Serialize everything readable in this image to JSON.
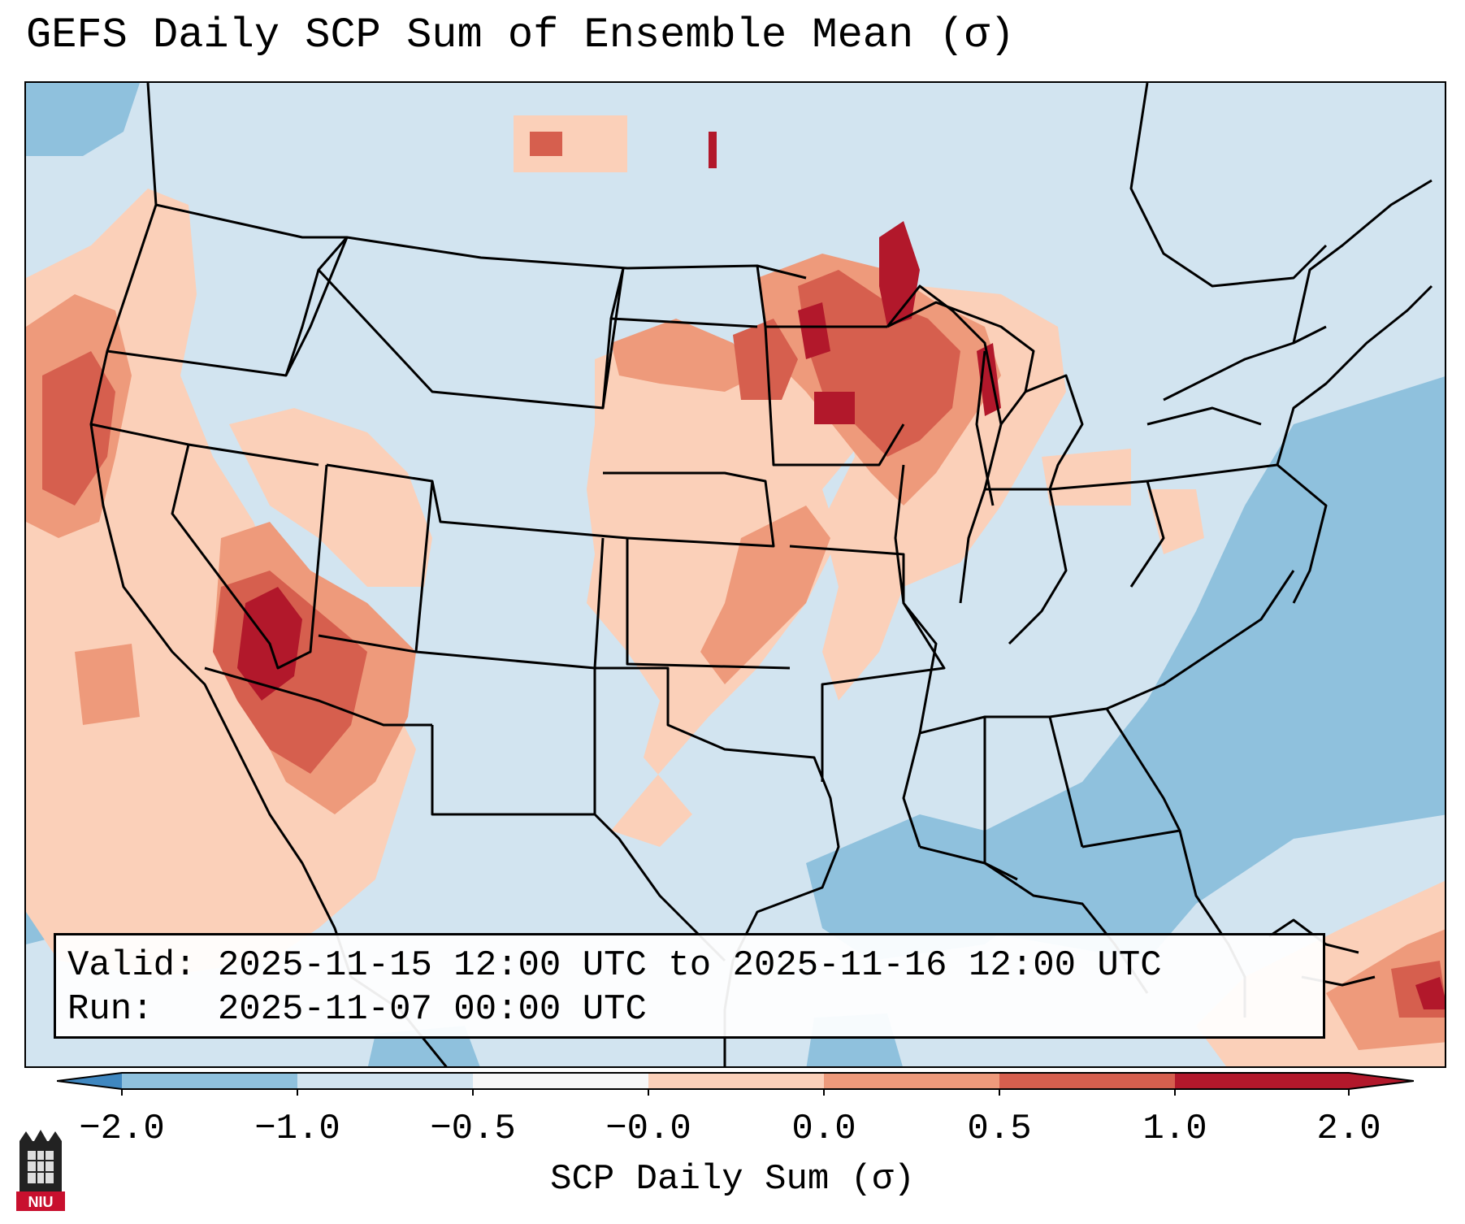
{
  "title": "GEFS Daily SCP Sum of Ensemble Mean (σ)",
  "info": {
    "valid_label": "Valid:",
    "valid_value": "2025-11-15 12:00 UTC to 2025-11-16 12:00 UTC",
    "run_label": "Run:",
    "run_value": "2025-11-07 00:00 UTC"
  },
  "colorbar": {
    "label": "SCP Daily Sum (σ)",
    "ticks": [
      "−2.0",
      "−1.0",
      "−0.5",
      "−0.0",
      "0.0",
      "0.5",
      "1.0",
      "2.0"
    ],
    "colors": [
      "#3f87c0",
      "#8fc1dd",
      "#d2e4f0",
      "#f7f7f7",
      "#fbd0b9",
      "#ee9a7b",
      "#d65f4e",
      "#b2182b"
    ]
  },
  "map": {
    "region": "Contiguous United States",
    "colors": {
      "ocean_low": "#8fc1dd",
      "near_zero": "#d2e4f0",
      "positive_low": "#fbd0b9",
      "positive_mid": "#ee9a7b",
      "positive_high": "#d65f4e",
      "positive_max": "#b2182b"
    }
  },
  "logo": {
    "text": "NIU",
    "icon": "niu-logo-icon"
  }
}
